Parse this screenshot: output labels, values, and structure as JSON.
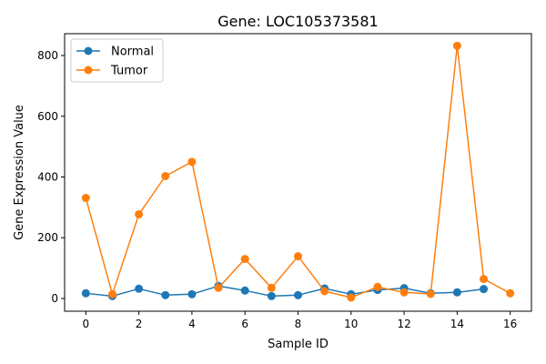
{
  "chart_data": {
    "type": "line",
    "title": "Gene: LOC105373581",
    "xlabel": "Sample ID",
    "ylabel": "Gene Expression Value",
    "xlim": [
      -0.8,
      16.8
    ],
    "ylim": [
      -42,
      872
    ],
    "xticks": [
      0,
      2,
      4,
      6,
      8,
      10,
      12,
      14,
      16
    ],
    "yticks": [
      0,
      200,
      400,
      600,
      800
    ],
    "grid": false,
    "legend_position": "top-left",
    "series": [
      {
        "name": "Normal",
        "color": "#1f77b4",
        "x": [
          0,
          1,
          2,
          3,
          4,
          5,
          6,
          7,
          8,
          9,
          10,
          11,
          12,
          13,
          14,
          15
        ],
        "y": [
          17,
          8,
          32,
          11,
          14,
          41,
          26,
          8,
          11,
          33,
          14,
          28,
          34,
          17,
          20,
          31
        ]
      },
      {
        "name": "Tumor",
        "color": "#ff7f0e",
        "x": [
          0,
          1,
          2,
          3,
          4,
          5,
          6,
          7,
          8,
          9,
          10,
          11,
          12,
          13,
          14,
          15,
          16
        ],
        "y": [
          331,
          14,
          277,
          403,
          450,
          35,
          130,
          35,
          139,
          24,
          3,
          38,
          20,
          15,
          832,
          64,
          17
        ]
      }
    ]
  }
}
